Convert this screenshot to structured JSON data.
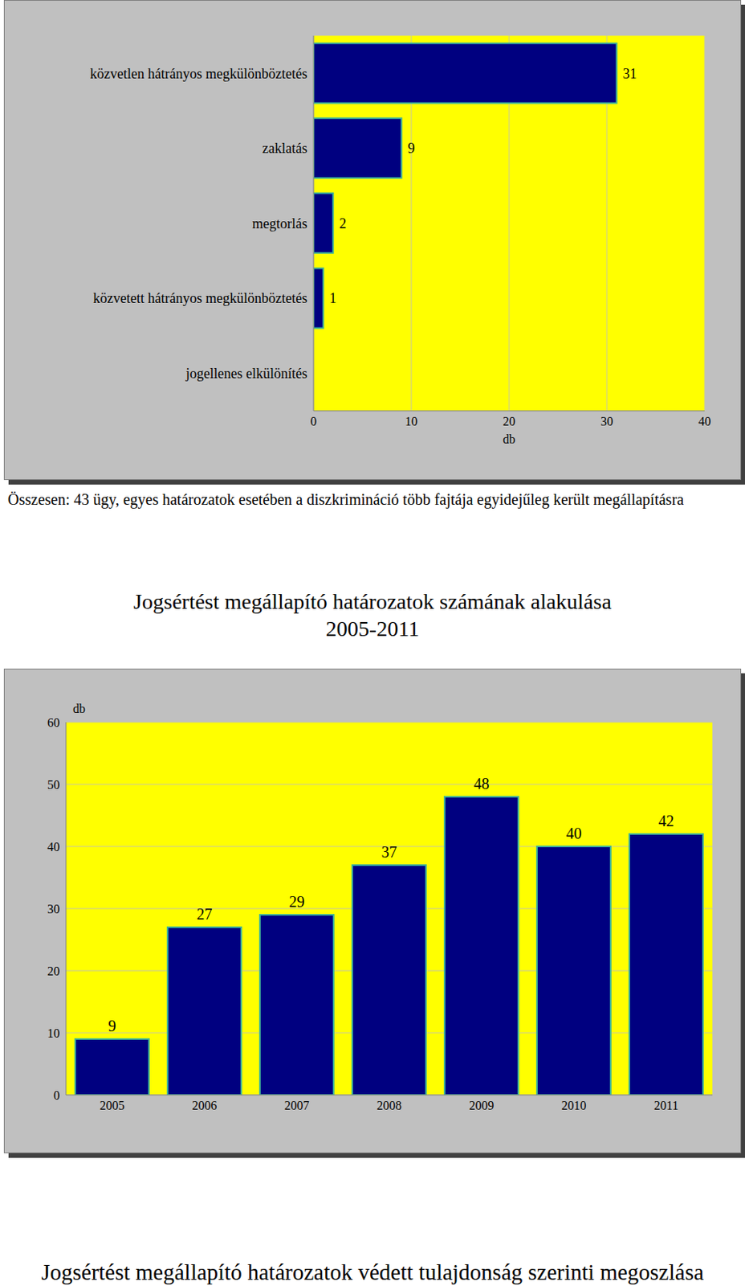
{
  "chart_data": [
    {
      "type": "bar",
      "orientation": "horizontal",
      "categories": [
        "közvetlen hátrányos megkülönböztetés",
        "zaklatás",
        "megtorlás",
        "közvetett hátrányos megkülönböztetés",
        "jogellenes elkülönítés"
      ],
      "values": [
        31,
        9,
        2,
        1,
        0
      ],
      "color": "#000080",
      "xlim": [
        0,
        40
      ],
      "xticks": [
        0,
        10,
        20,
        30,
        40
      ],
      "xlabel": "db",
      "grid": true,
      "data_labels": true,
      "annotations": [
        "Összesen: 43 ügy, egyes határozatok esetében a diszkrimináció több fajtája egyidejűleg került megállapításra"
      ]
    },
    {
      "type": "bar",
      "title": "Jogsértést megállapító határozatok számának alakulása",
      "subtitle": "2005-2011",
      "categories": [
        "2005",
        "2006",
        "2007",
        "2008",
        "2009",
        "2010",
        "2011"
      ],
      "values": [
        9,
        27,
        29,
        37,
        48,
        40,
        42
      ],
      "color": "#000080",
      "ylim": [
        0,
        60
      ],
      "yticks": [
        0,
        10,
        20,
        30,
        40,
        50,
        60
      ],
      "ylabel": "db",
      "grid": true,
      "data_labels": true
    }
  ],
  "heading": "Jogsértést megállapító határozatok védett tulajdonság szerinti megoszlása"
}
